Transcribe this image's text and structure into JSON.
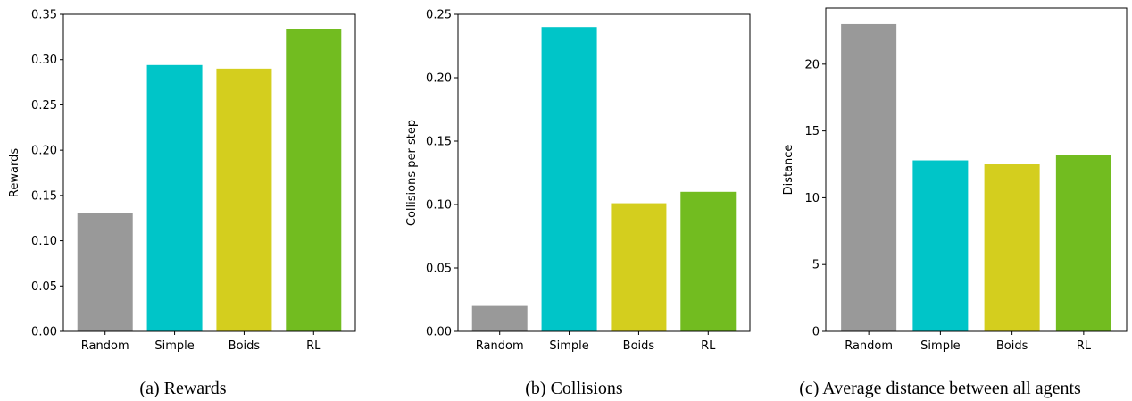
{
  "colors": {
    "Random": "#999999",
    "Simple": "#00c5c8",
    "Boids": "#d4ce1e",
    "RL": "#72bc20"
  },
  "chart_data": [
    {
      "type": "bar",
      "categories": [
        "Random",
        "Simple",
        "Boids",
        "RL"
      ],
      "values": [
        0.131,
        0.294,
        0.29,
        0.334
      ],
      "title": "",
      "xlabel": "",
      "ylabel": "Rewards",
      "ylim": [
        0,
        0.35
      ],
      "yticks": [
        0.0,
        0.05,
        0.1,
        0.15,
        0.2,
        0.25,
        0.3,
        0.35
      ],
      "ytick_labels": [
        "0.00",
        "0.05",
        "0.10",
        "0.15",
        "0.20",
        "0.25",
        "0.30",
        "0.35"
      ],
      "grid": false,
      "caption": "(a) Rewards"
    },
    {
      "type": "bar",
      "categories": [
        "Random",
        "Simple",
        "Boids",
        "RL"
      ],
      "values": [
        0.02,
        0.24,
        0.101,
        0.11
      ],
      "title": "",
      "xlabel": "",
      "ylabel": "Collisions per step",
      "ylim": [
        0,
        0.25
      ],
      "yticks": [
        0.0,
        0.05,
        0.1,
        0.15,
        0.2,
        0.25
      ],
      "ytick_labels": [
        "0.00",
        "0.05",
        "0.10",
        "0.15",
        "0.20",
        "0.25"
      ],
      "grid": false,
      "caption": "(b) Collisions"
    },
    {
      "type": "bar",
      "categories": [
        "Random",
        "Simple",
        "Boids",
        "RL"
      ],
      "values": [
        23.0,
        12.8,
        12.5,
        13.2
      ],
      "title": "",
      "xlabel": "",
      "ylabel": "Distance",
      "ylim": [
        0,
        24.2
      ],
      "yticks": [
        0,
        5,
        10,
        15,
        20
      ],
      "ytick_labels": [
        "0",
        "5",
        "10",
        "15",
        "20"
      ],
      "grid": false,
      "caption": "(c) Average distance between all agents"
    }
  ]
}
